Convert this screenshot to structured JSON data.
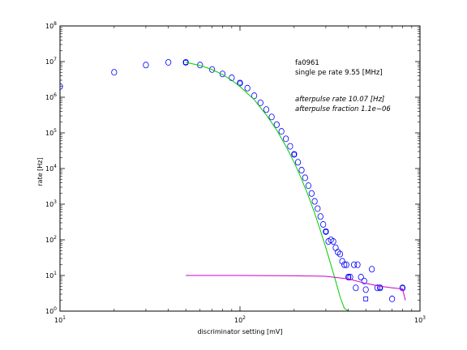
{
  "chart_data": {
    "type": "scatter",
    "xscale": "log",
    "yscale": "log",
    "xlim": [
      10,
      1000
    ],
    "ylim": [
      1,
      100000000
    ],
    "xlabel": "discriminator setting [mV]",
    "ylabel": "rate [Hz]",
    "x_ticks": [
      {
        "value": 10,
        "base": "10",
        "exp": "1"
      },
      {
        "value": 100,
        "base": "10",
        "exp": "2"
      },
      {
        "value": 1000,
        "base": "10",
        "exp": "3"
      }
    ],
    "y_ticks": [
      {
        "value": 1,
        "base": "10",
        "exp": "0"
      },
      {
        "value": 10,
        "base": "10",
        "exp": "1"
      },
      {
        "value": 100,
        "base": "10",
        "exp": "2"
      },
      {
        "value": 1000,
        "base": "10",
        "exp": "3"
      },
      {
        "value": 10000,
        "base": "10",
        "exp": "4"
      },
      {
        "value": 100000,
        "base": "10",
        "exp": "5"
      },
      {
        "value": 1000000,
        "base": "10",
        "exp": "6"
      },
      {
        "value": 10000000,
        "base": "10",
        "exp": "7"
      },
      {
        "value": 100000000,
        "base": "10",
        "exp": "8"
      }
    ],
    "grid": false,
    "annotations": [
      {
        "text": "fa0961",
        "style": "normal"
      },
      {
        "text": "single pe rate 9.55 [MHz]",
        "style": "normal"
      },
      {
        "text": "afterpulse rate 10.07 [Hz]",
        "style": "italic"
      },
      {
        "text": "afterpulse fraction 1.1e−06",
        "style": "italic"
      }
    ],
    "series": [
      {
        "marker": "circle",
        "color": "#0000ff",
        "points": [
          [
            10,
            2000000
          ],
          [
            20,
            5000000
          ],
          [
            30,
            8000000
          ],
          [
            40,
            9500000
          ],
          [
            50,
            9500000
          ],
          [
            60,
            8000000
          ],
          [
            70,
            6000000
          ],
          [
            80,
            4500000
          ],
          [
            90,
            3500000
          ],
          [
            100,
            2500000
          ],
          [
            110,
            1800000
          ],
          [
            120,
            1100000
          ],
          [
            130,
            700000
          ],
          [
            140,
            450000
          ],
          [
            150,
            280000
          ],
          [
            160,
            170000
          ],
          [
            170,
            110000
          ],
          [
            180,
            68000
          ],
          [
            190,
            42000
          ],
          [
            200,
            25000
          ],
          [
            210,
            15000
          ],
          [
            220,
            9000
          ],
          [
            230,
            5500
          ],
          [
            240,
            3300
          ],
          [
            250,
            2000
          ],
          [
            260,
            1200
          ],
          [
            270,
            750
          ],
          [
            280,
            450
          ],
          [
            290,
            270
          ],
          [
            300,
            170
          ],
          [
            310,
            90
          ],
          [
            320,
            100
          ],
          [
            330,
            90
          ],
          [
            340,
            60
          ],
          [
            350,
            45
          ],
          [
            360,
            40
          ],
          [
            370,
            25
          ],
          [
            380,
            20
          ],
          [
            390,
            20
          ],
          [
            400,
            9
          ],
          [
            410,
            9
          ],
          [
            430,
            20
          ],
          [
            440,
            4.5
          ],
          [
            450,
            20
          ],
          [
            470,
            9
          ],
          [
            490,
            7
          ],
          [
            500,
            4
          ],
          [
            540,
            15
          ],
          [
            580,
            4.5
          ],
          [
            600,
            4.5
          ],
          [
            700,
            2.2
          ],
          [
            800,
            4.5
          ]
        ]
      },
      {
        "marker": "square",
        "color": "#0000ff",
        "points": [
          [
            50,
            9500000
          ],
          [
            100,
            2500000
          ],
          [
            200,
            25000
          ],
          [
            300,
            170
          ],
          [
            400,
            9
          ],
          [
            500,
            2.2
          ],
          [
            600,
            4.5
          ],
          [
            800,
            4.5
          ]
        ]
      },
      {
        "type": "line",
        "color": "#00cc00",
        "points": [
          [
            50,
            9500000
          ],
          [
            60,
            7800000
          ],
          [
            70,
            6000000
          ],
          [
            80,
            4300000
          ],
          [
            90,
            3000000
          ],
          [
            100,
            2000000
          ],
          [
            120,
            850000
          ],
          [
            140,
            320000
          ],
          [
            160,
            120000
          ],
          [
            180,
            42000
          ],
          [
            200,
            15000
          ],
          [
            220,
            5000
          ],
          [
            240,
            1700
          ],
          [
            260,
            560
          ],
          [
            280,
            180
          ],
          [
            300,
            60
          ],
          [
            320,
            20
          ],
          [
            340,
            7
          ],
          [
            360,
            2.5
          ],
          [
            380,
            1.2
          ],
          [
            400,
            1
          ]
        ]
      },
      {
        "type": "line",
        "color": "#cc00cc",
        "points": [
          [
            50,
            10
          ],
          [
            100,
            10
          ],
          [
            200,
            9.8
          ],
          [
            300,
            9.5
          ],
          [
            400,
            8
          ],
          [
            500,
            6
          ],
          [
            600,
            5
          ],
          [
            700,
            4.5
          ],
          [
            800,
            4.2
          ],
          [
            830,
            2
          ]
        ]
      }
    ]
  }
}
